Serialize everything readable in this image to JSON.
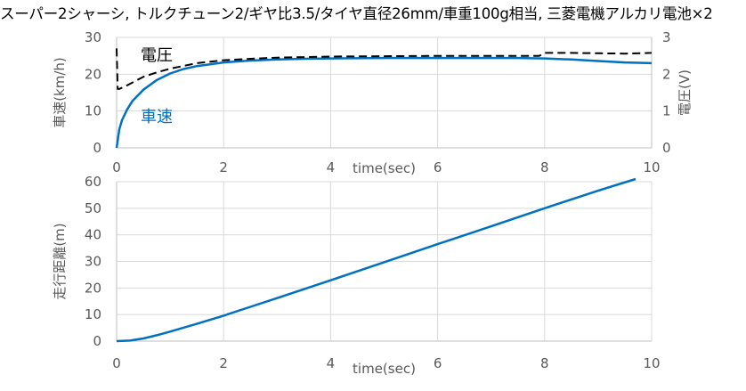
{
  "title": "スーパー2シャーシ, トルクチューン2/ギヤ比3.5/タイヤ直径26mm/車重100g相当, 三菱電機アルカリ電池×2",
  "colors": {
    "speed": "#0070C0",
    "voltage": "#000000",
    "grid": "#D9D9D9",
    "axis": "#BFBFBF"
  },
  "chart_data": [
    {
      "type": "line",
      "xlabel": "time(sec)",
      "ylabel": "車速(km/h)",
      "y2label": "電圧(V)",
      "xlim": [
        0,
        10
      ],
      "ylim": [
        0,
        30
      ],
      "y2lim": [
        0,
        3
      ],
      "xticks": [
        0,
        2,
        4,
        6,
        8,
        10
      ],
      "yticks": [
        0,
        10,
        20,
        30
      ],
      "y2ticks": [
        0,
        1,
        2,
        3
      ],
      "grid": true,
      "annotations": [
        {
          "text": "電圧",
          "color": "#000000"
        },
        {
          "text": "車速",
          "color": "#0070C0"
        }
      ],
      "series": [
        {
          "axis": "left",
          "style": "solid",
          "color": "#0070C0",
          "x": [
            0,
            0.05,
            0.1,
            0.2,
            0.3,
            0.5,
            0.75,
            1.0,
            1.25,
            1.5,
            2.0,
            2.5,
            3.0,
            3.5,
            4.0,
            5.0,
            6.0,
            7.0,
            7.5,
            8.0,
            8.5,
            9.0,
            9.5,
            10.0
          ],
          "y": [
            0,
            5,
            7.5,
            10.5,
            12.8,
            15.8,
            18.4,
            20.2,
            21.4,
            22.2,
            23.2,
            23.7,
            24.0,
            24.2,
            24.3,
            24.4,
            24.4,
            24.4,
            24.4,
            24.3,
            24.0,
            23.6,
            23.2,
            23.0
          ]
        },
        {
          "axis": "right",
          "style": "dashed",
          "color": "#000000",
          "x": [
            0,
            0.02,
            0.05,
            0.2,
            0.5,
            0.75,
            1.0,
            1.5,
            2.0,
            2.5,
            3.0,
            4.0,
            5.0,
            6.0,
            7.0,
            7.9,
            8.0,
            8.5,
            9.0,
            9.5,
            10.0
          ],
          "y": [
            2.7,
            1.6,
            1.6,
            1.7,
            1.93,
            2.05,
            2.15,
            2.3,
            2.38,
            2.42,
            2.45,
            2.48,
            2.49,
            2.5,
            2.5,
            2.5,
            2.58,
            2.58,
            2.57,
            2.56,
            2.58
          ]
        }
      ]
    },
    {
      "type": "line",
      "xlabel": "time(sec)",
      "ylabel": "走行距離(m)",
      "xlim": [
        0,
        10
      ],
      "ylim": [
        0,
        60
      ],
      "xticks": [
        0,
        2,
        4,
        6,
        8,
        10
      ],
      "yticks": [
        0,
        10,
        20,
        30,
        40,
        50,
        60
      ],
      "grid": true,
      "series": [
        {
          "axis": "left",
          "style": "solid",
          "color": "#0070C0",
          "x": [
            0,
            0.25,
            0.5,
            0.75,
            1.0,
            1.5,
            2.0,
            2.5,
            3.0,
            4.0,
            5.0,
            6.0,
            7.0,
            8.0,
            9.0,
            9.7
          ],
          "y": [
            0,
            0.2,
            1.0,
            2.2,
            3.6,
            6.5,
            9.6,
            12.9,
            16.2,
            22.9,
            29.7,
            36.5,
            43.2,
            50.0,
            56.6,
            61.0
          ]
        }
      ]
    }
  ]
}
